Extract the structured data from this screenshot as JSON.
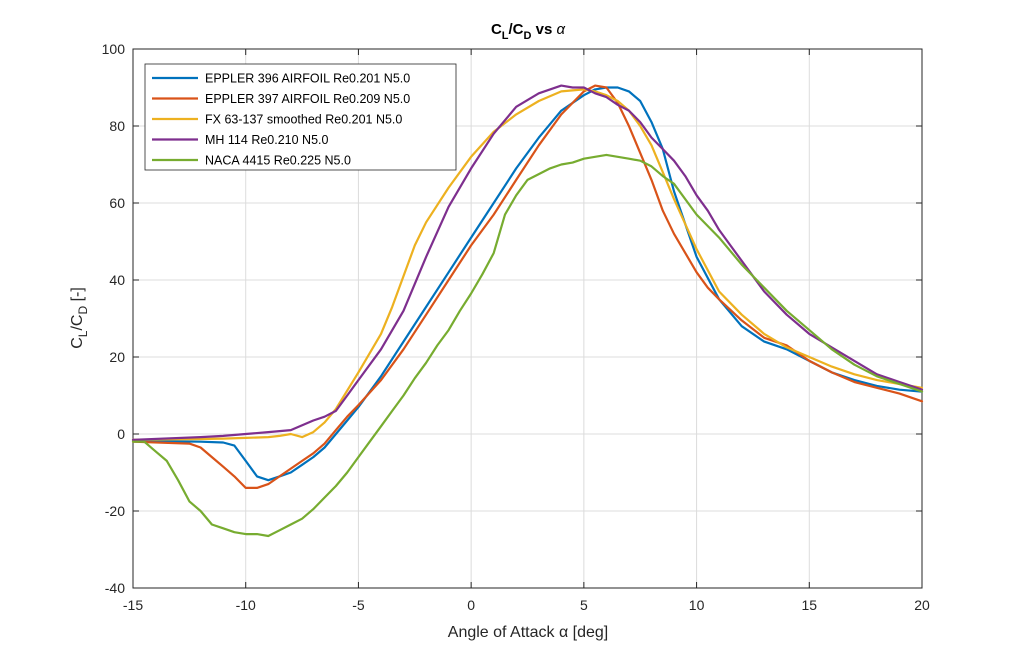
{
  "chart_data": {
    "type": "line",
    "title": {
      "main": "C",
      "sub1": "L",
      "slash": "/C",
      "sub2": "D",
      "tail": " vs ",
      "alpha": "α"
    },
    "xlabel": "Angle of Attack α [deg]",
    "ylabel": {
      "main": "C",
      "sub1": "L",
      "slash": "/C",
      "sub2": "D",
      "tail": " [-]"
    },
    "xlim": [
      -15,
      20
    ],
    "ylim": [
      -40,
      100
    ],
    "xticks": [
      "-15",
      "-10",
      "-5",
      "0",
      "5",
      "10",
      "15",
      "20"
    ],
    "yticks": [
      "-40",
      "-20",
      "0",
      "20",
      "40",
      "60",
      "80",
      "100"
    ],
    "grid": true,
    "legend_position": "top-left",
    "series": [
      {
        "name": "EPPLER 396 AIRFOIL Re0.201 N5.0",
        "color": "#0072BD",
        "x": [
          -15,
          -12,
          -11,
          -10.5,
          -10,
          -9.5,
          -9,
          -8.5,
          -8,
          -7.5,
          -7,
          -6.5,
          -6,
          -5.5,
          -5,
          -4,
          -3,
          -2,
          -1,
          0,
          1,
          2,
          3,
          4,
          5,
          5.5,
          6,
          6.5,
          7,
          7.5,
          8,
          8.5,
          9,
          10,
          11,
          12,
          13,
          14,
          15,
          16,
          17,
          18,
          19,
          20
        ],
        "y": [
          -1.8,
          -2,
          -2.2,
          -3,
          -7,
          -11,
          -12,
          -11,
          -10,
          -8,
          -6,
          -3.5,
          0,
          3.5,
          7,
          15,
          24,
          33,
          42,
          51,
          60,
          69,
          77,
          84,
          88,
          89.5,
          90,
          90,
          89,
          86.5,
          81,
          74,
          63,
          46,
          35,
          28,
          24,
          22,
          19,
          16,
          14,
          12.5,
          11.5,
          11
        ]
      },
      {
        "name": "EPPLER 397 AIRFOIL Re0.209 N5.0",
        "color": "#D95319",
        "x": [
          -15,
          -12.5,
          -12,
          -11.5,
          -11,
          -10.5,
          -10,
          -9.5,
          -9,
          -8.5,
          -8,
          -7.5,
          -7,
          -6.5,
          -6,
          -5.5,
          -5,
          -4,
          -3,
          -2,
          -1,
          0,
          1,
          2,
          3,
          4,
          5,
          5.5,
          6,
          6.5,
          7,
          7.5,
          8,
          8.5,
          9,
          10,
          10.5,
          11,
          12,
          13,
          14,
          15,
          16,
          17,
          18,
          19,
          20
        ],
        "y": [
          -2,
          -2.5,
          -3.5,
          -6,
          -8.5,
          -11,
          -14,
          -14,
          -13,
          -11,
          -9,
          -7,
          -5,
          -2.5,
          1,
          4.5,
          7.5,
          14,
          22,
          31,
          40,
          49,
          57,
          66,
          75,
          83,
          89,
          90.5,
          90,
          86,
          80,
          73,
          66,
          58,
          52,
          42,
          38,
          35,
          29.5,
          25,
          23,
          19,
          16,
          13.5,
          12,
          10.5,
          8.5
        ]
      },
      {
        "name": "FX 63-137 smoothed Re0.201 N5.0",
        "color": "#EDB120",
        "x": [
          -15,
          -12,
          -11,
          -10,
          -9,
          -8.5,
          -8,
          -7.5,
          -7,
          -6.5,
          -6,
          -5,
          -4,
          -3.5,
          -3,
          -2.5,
          -2,
          -1,
          0,
          1,
          2,
          3,
          4,
          5,
          5.5,
          6,
          6.5,
          7,
          7.5,
          8,
          8.5,
          9,
          10,
          11,
          12,
          13,
          14,
          15,
          16,
          17,
          18,
          19,
          20
        ],
        "y": [
          -1.5,
          -1.3,
          -1.2,
          -1,
          -0.8,
          -0.5,
          0,
          -0.8,
          0.5,
          3,
          6.5,
          16,
          26,
          33,
          41,
          49,
          55,
          64,
          72,
          78.5,
          83,
          86.5,
          89,
          89.5,
          89,
          88,
          86.5,
          84,
          80,
          75,
          68,
          61,
          48,
          37,
          31,
          26,
          22.5,
          20,
          17.5,
          15.5,
          14,
          13,
          12
        ]
      },
      {
        "name": "MH 114 Re0.210 N5.0",
        "color": "#7E2F8E",
        "x": [
          -15,
          -12,
          -11,
          -10,
          -9,
          -8,
          -7,
          -6.5,
          -6,
          -5.5,
          -5,
          -4,
          -3,
          -2,
          -1,
          0,
          1,
          2,
          3,
          4,
          4.5,
          5,
          5.5,
          6,
          6.5,
          7,
          7.5,
          8,
          8.5,
          9,
          9.5,
          10,
          10.5,
          11,
          11.5,
          12,
          13,
          14,
          15,
          16,
          17,
          18,
          19,
          20
        ],
        "y": [
          -1.5,
          -0.8,
          -0.5,
          0,
          0.5,
          1,
          3.5,
          4.5,
          6,
          10,
          14,
          22,
          32,
          46,
          59,
          69,
          78,
          85,
          88.5,
          90.5,
          90,
          90,
          88.5,
          87.5,
          85.5,
          84,
          81,
          77,
          74,
          71,
          67,
          62,
          58,
          53,
          49,
          45,
          37,
          31,
          26,
          22.5,
          19,
          15.5,
          13.5,
          11.5
        ]
      },
      {
        "name": "NACA 4415 Re0.225 N5.0",
        "color": "#77AC30",
        "x": [
          -15,
          -14.5,
          -14,
          -13.5,
          -13,
          -12.5,
          -12,
          -11.5,
          -11,
          -10.5,
          -10,
          -9.5,
          -9,
          -8.5,
          -8,
          -7.5,
          -7,
          -6.5,
          -6,
          -5.5,
          -5,
          -4.5,
          -4,
          -3.5,
          -3,
          -2.5,
          -2,
          -1.5,
          -1,
          -0.5,
          0,
          0.5,
          1,
          1.5,
          2,
          2.5,
          3,
          3.5,
          4,
          4.5,
          5,
          5.5,
          6,
          6.5,
          7,
          7.5,
          8,
          8.5,
          9,
          10,
          11,
          12,
          13,
          14,
          15,
          16,
          17,
          18,
          19,
          20
        ],
        "y": [
          -2,
          -2,
          -4.5,
          -7,
          -12,
          -17.5,
          -20,
          -23.5,
          -24.5,
          -25.5,
          -26,
          -26,
          -26.5,
          -25,
          -23.5,
          -22,
          -19.5,
          -16.5,
          -13.5,
          -10,
          -6,
          -2,
          2,
          6,
          10,
          14.5,
          18.5,
          23,
          27,
          32,
          36.5,
          41.5,
          47,
          57,
          62,
          66,
          67.5,
          69,
          70,
          70.5,
          71.5,
          72,
          72.5,
          72,
          71.5,
          71,
          69.5,
          67,
          65,
          57,
          51,
          44,
          38,
          32,
          27,
          22,
          18,
          15,
          13,
          11
        ]
      }
    ]
  }
}
